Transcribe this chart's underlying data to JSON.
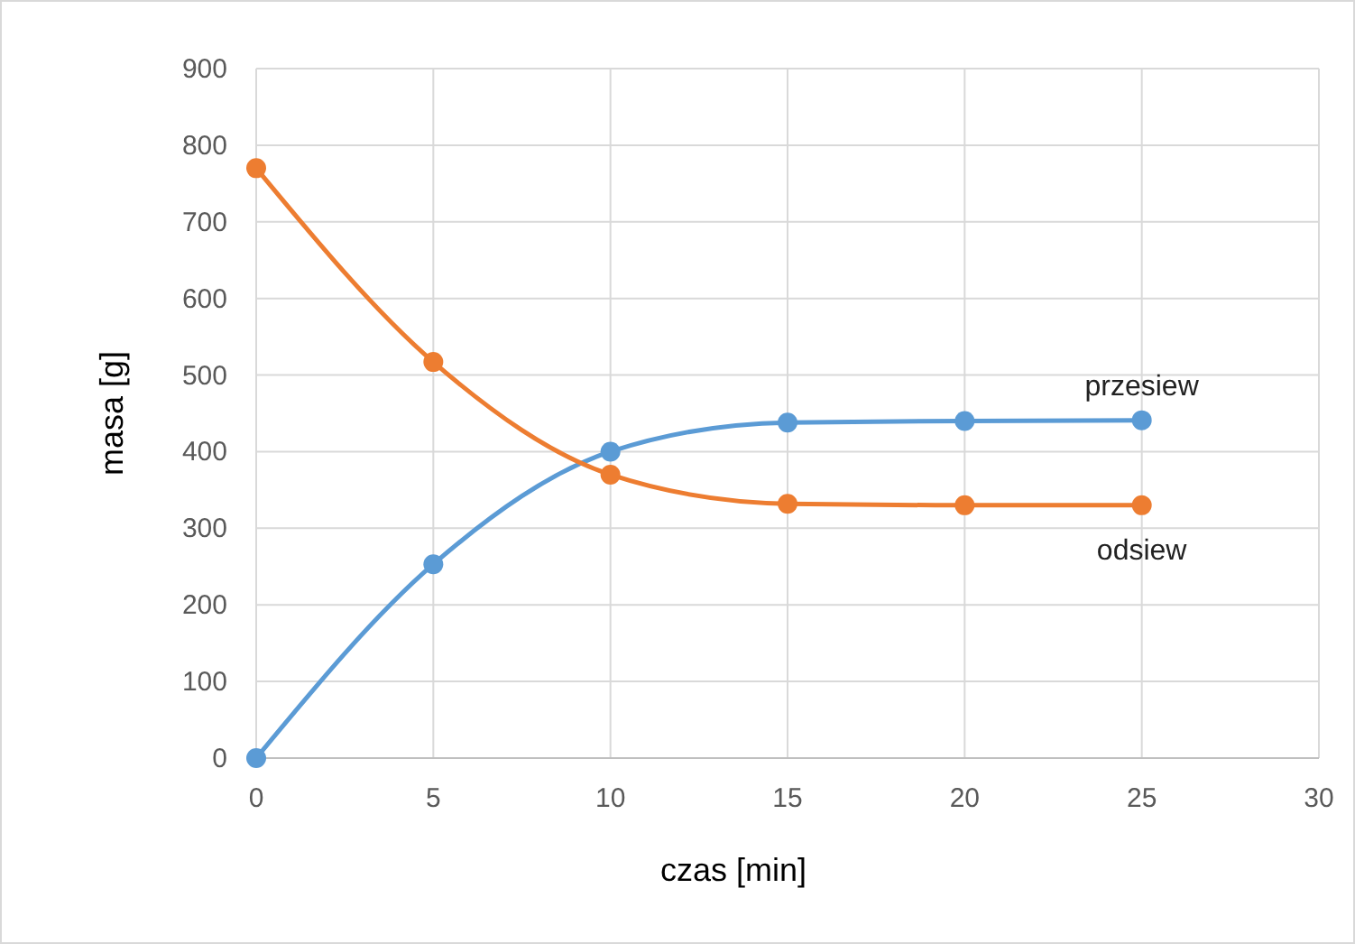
{
  "chart_data": {
    "type": "line",
    "xlabel": "czas  [min]",
    "ylabel": "masa  [g]",
    "x": [
      0,
      5,
      10,
      15,
      20,
      25
    ],
    "series": [
      {
        "name": "przesiew",
        "color": "#5b9bd5",
        "values": [
          0,
          253,
          400,
          438,
          440,
          441
        ]
      },
      {
        "name": "odsiew",
        "color": "#ed7d31",
        "values": [
          770,
          517,
          370,
          332,
          330,
          330
        ]
      }
    ],
    "xlim": [
      0,
      30
    ],
    "xticks": [
      0,
      5,
      10,
      15,
      20,
      25,
      30
    ],
    "ylim": [
      0,
      900
    ],
    "yticks": [
      0,
      100,
      200,
      300,
      400,
      500,
      600,
      700,
      800,
      900
    ],
    "grid": true,
    "marker": "circle",
    "line_style": "solid"
  }
}
